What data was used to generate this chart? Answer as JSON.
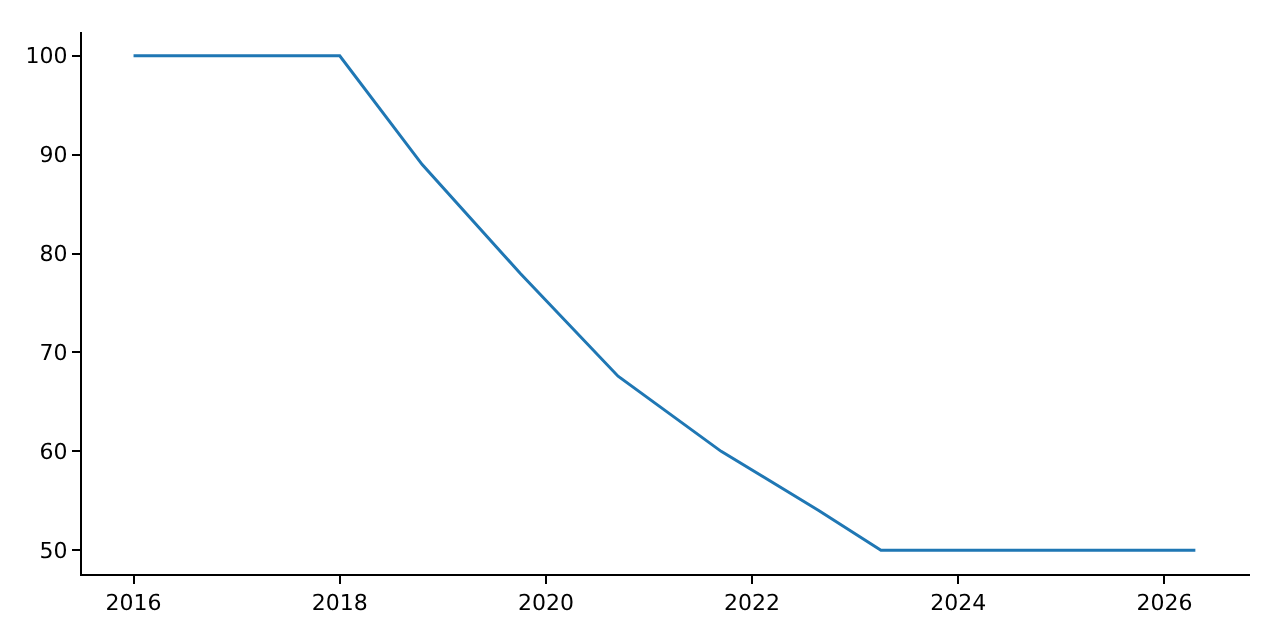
{
  "chart_data": {
    "type": "line",
    "x": [
      2016,
      2018,
      2018.8,
      2019.75,
      2020.7,
      2021.7,
      2022.65,
      2023.25,
      2026.3
    ],
    "series": [
      {
        "color": "#1f77b4",
        "values": [
          100,
          100,
          89,
          78,
          67.6,
          60,
          54,
          50,
          50
        ]
      }
    ],
    "xlim": [
      2015.5,
      2026.83
    ],
    "xticks": [
      2016,
      2018,
      2020,
      2022,
      2024,
      2026
    ],
    "ylim": [
      47.6,
      102.4
    ],
    "yticks": [
      50,
      60,
      70,
      80,
      90,
      100
    ],
    "marker": "none",
    "line_style": "solid"
  }
}
